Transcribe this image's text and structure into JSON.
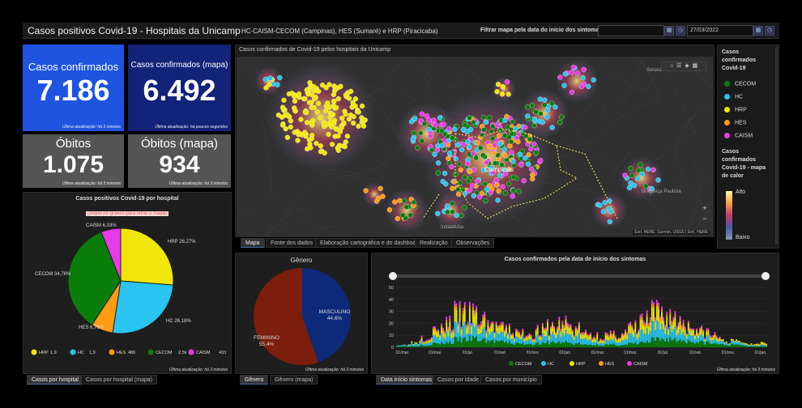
{
  "header": {
    "title": "Casos positivos Covid-19 - Hospitais da Unicamp",
    "subtitle": "HC-CAISM-CECOM (Campinas), HES (Sumaré) e HRP (Piracicaba)",
    "filter_label": "Filtrar mapa pela data do início dos sintomas",
    "date_from": "",
    "date_to": "27/03/2022"
  },
  "kpis": {
    "confirmed": {
      "label": "Casos confirmados",
      "value": "7.186",
      "update": "Última atualização: há 3 minutos"
    },
    "confirmed_map": {
      "label": "Casos confirmados (mapa)",
      "value": "6.492",
      "update": "Última atualização: há poucos segundos"
    },
    "deaths": {
      "label": "Óbitos",
      "value": "1.075",
      "update": "Última atualização: há 3 minutos"
    },
    "deaths_map": {
      "label": "Óbitos (mapa)",
      "value": "934",
      "update": "Última atualização: há 3 minutos"
    }
  },
  "colors": {
    "CECOM": "#0a7d0a",
    "HC": "#29c4f0",
    "HRP": "#f0e60a",
    "HES": "#ff9b12",
    "CAISM": "#e83ae8",
    "blue_kpi": "#1f54e0",
    "navy_kpi": "#12237a",
    "masc": "#0d2a7a",
    "fem": "#7b1e0c"
  },
  "map": {
    "title": "Casos confirmados de Covid-19 pelos hospitais da Unicamp",
    "city": "Campinas",
    "attribution": "Esri, HERE, Garmin, USGS | Esri, HERE",
    "place_labels": [
      "Sorocaba",
      "Indaiatuba",
      "Bragança Paulista"
    ],
    "tabs": [
      "Mapa",
      "Fonte dos dados",
      "Elaboração cartográfica e do dashboard",
      "Realização",
      "Observações"
    ]
  },
  "legend": {
    "title1": "Casos confirmados Covid-19",
    "items": [
      "CECOM",
      "HC",
      "HRP",
      "HES",
      "CAISM"
    ],
    "title2": "Casos confirmados Covid-19 - mapa de calor",
    "high": "Alto",
    "low": "Baixo"
  },
  "pie": {
    "title": "Casos positivos Covid-19 por hospital",
    "hint": "(clique no gráfico para filtrar o mapa)",
    "update": "Última atualização: há 3 minutos",
    "tabs": [
      "Casos por hospital",
      "Casos por hospital (mapa)"
    ]
  },
  "gender": {
    "title": "Gênero",
    "update": "Última atualização: há 3 minutos",
    "tabs": [
      "Gênero",
      "Gênero (mapa)"
    ]
  },
  "timeline": {
    "title": "Casos confirmados pela data de início dos sintomas",
    "update": "Última atualização: há 3 minutos",
    "tabs": [
      "Data início sintomas",
      "Casos por idade",
      "Casos por município"
    ]
  },
  "chart_data": [
    {
      "type": "pie",
      "title": "Casos positivos Covid-19 por hospital",
      "slices": [
        {
          "name": "HRP",
          "label": "HRP 26,27%",
          "percent": 26.27,
          "legend_value": "1,9"
        },
        {
          "name": "HC",
          "label": "HC 26,18%",
          "percent": 26.18,
          "legend_value": "1,9"
        },
        {
          "name": "HES",
          "label": "HES 6,76%",
          "percent": 6.76,
          "legend_value": "486"
        },
        {
          "name": "CECOM",
          "label": "CECOM 34,76%",
          "percent": 34.76,
          "legend_value": "2,5k"
        },
        {
          "name": "CAISM",
          "label": "CAISM 6,03%",
          "percent": 6.03,
          "legend_value": "433"
        }
      ]
    },
    {
      "type": "pie",
      "title": "Gênero",
      "slices": [
        {
          "name": "MASCULINO",
          "percent_label": "44,6%",
          "percent": 44.6
        },
        {
          "name": "FEMININO",
          "percent_label": "55,4%",
          "percent": 55.4
        }
      ]
    },
    {
      "type": "bar",
      "title": "Casos confirmados pela data de início dos sintomas",
      "stacked": true,
      "ylim": [
        0,
        50
      ],
      "yticks": [
        "50",
        "40",
        "30",
        "20",
        "10",
        "0"
      ],
      "xticks": [
        "01/mar.",
        "01/mai.",
        "01/jul.",
        "01/set.",
        "01/nov.",
        "01/jan.",
        "01/mar.",
        "01/mai.",
        "01/jul.",
        "01/set.",
        "01/nov.",
        "01/jan."
      ],
      "series": [
        {
          "name": "CECOM",
          "values": [
            1,
            1,
            2,
            3,
            4,
            6,
            7,
            6,
            5,
            4,
            3,
            3,
            3,
            4,
            4,
            3,
            2,
            2,
            2,
            2,
            3,
            4,
            6,
            7,
            6,
            5,
            4,
            3,
            2,
            2,
            1,
            1
          ]
        },
        {
          "name": "HC",
          "values": [
            1,
            2,
            3,
            5,
            7,
            9,
            8,
            7,
            6,
            5,
            4,
            4,
            5,
            6,
            7,
            6,
            4,
            3,
            3,
            4,
            6,
            8,
            10,
            9,
            7,
            6,
            4,
            3,
            2,
            2,
            1,
            1
          ]
        },
        {
          "name": "HRP",
          "values": [
            0,
            1,
            2,
            4,
            6,
            8,
            8,
            6,
            5,
            4,
            3,
            3,
            4,
            5,
            6,
            5,
            3,
            3,
            3,
            4,
            5,
            7,
            8,
            7,
            6,
            5,
            3,
            2,
            1,
            1,
            1,
            2
          ]
        },
        {
          "name": "HES",
          "values": [
            0,
            0,
            1,
            1,
            2,
            2,
            2,
            2,
            1,
            1,
            1,
            1,
            1,
            1,
            1,
            1,
            1,
            1,
            1,
            1,
            1,
            2,
            2,
            2,
            2,
            1,
            1,
            1,
            0,
            0,
            0,
            0
          ]
        },
        {
          "name": "CAISM",
          "values": [
            0,
            0,
            1,
            1,
            2,
            2,
            2,
            2,
            1,
            1,
            1,
            1,
            1,
            1,
            2,
            1,
            1,
            1,
            1,
            1,
            1,
            2,
            2,
            2,
            2,
            1,
            1,
            1,
            0,
            0,
            0,
            0
          ]
        }
      ]
    }
  ]
}
